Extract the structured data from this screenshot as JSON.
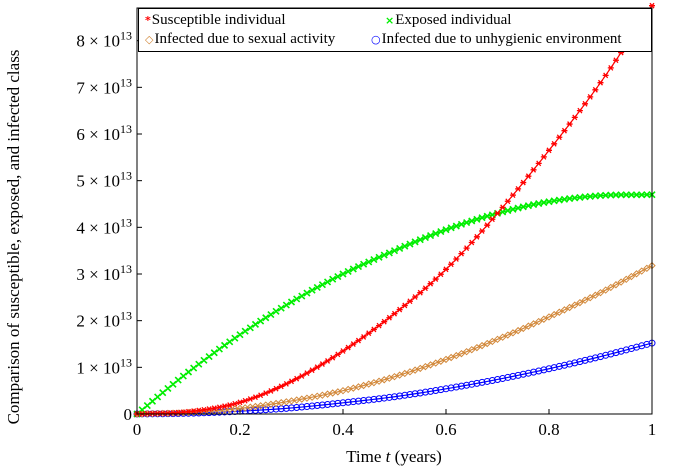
{
  "chart_data": {
    "type": "line",
    "xlabel_prefix": "Time ",
    "xlabel_var": "t",
    "xlabel_suffix": " (years)",
    "ylabel": "Comparison of susceptible, exposed, and infected class",
    "xlim": [
      0,
      1
    ],
    "ylim": [
      0,
      87000000000000
    ],
    "x_ticks": [
      "0",
      "0.2",
      "0.4",
      "0.6",
      "0.8",
      "1"
    ],
    "x_tick_values": [
      0,
      0.2,
      0.4,
      0.6,
      0.8,
      1
    ],
    "y_ticks": [
      {
        "value": 0,
        "mantissa": "0",
        "times": "",
        "base": "",
        "exp": ""
      },
      {
        "value": 10000000000000,
        "mantissa": "1",
        "times": "×",
        "base": "10",
        "exp": "13"
      },
      {
        "value": 20000000000000,
        "mantissa": "2",
        "times": "×",
        "base": "10",
        "exp": "13"
      },
      {
        "value": 30000000000000,
        "mantissa": "3",
        "times": "×",
        "base": "10",
        "exp": "13"
      },
      {
        "value": 40000000000000,
        "mantissa": "4",
        "times": "×",
        "base": "10",
        "exp": "13"
      },
      {
        "value": 50000000000000,
        "mantissa": "5",
        "times": "×",
        "base": "10",
        "exp": "13"
      },
      {
        "value": 60000000000000,
        "mantissa": "6",
        "times": "×",
        "base": "10",
        "exp": "13"
      },
      {
        "value": 70000000000000,
        "mantissa": "7",
        "times": "×",
        "base": "10",
        "exp": "13"
      },
      {
        "value": 80000000000000,
        "mantissa": "8",
        "times": "×",
        "base": "10",
        "exp": "13"
      }
    ],
    "legend_position": "top",
    "grid": false,
    "series": [
      {
        "name": "Susceptible individual",
        "marker": "*",
        "color": "#ff0000",
        "x": [
          0,
          0.1,
          0.2,
          0.3,
          0.4,
          0.5,
          0.6,
          0.7,
          0.8,
          0.9,
          1.0
        ],
        "y": [
          0,
          500000000000,
          2500000000000,
          7000000000000,
          13500000000000,
          21500000000000,
          31000000000000,
          43000000000000,
          56500000000000,
          71000000000000,
          87500000000000
        ]
      },
      {
        "name": "Exposed individual",
        "marker": "×",
        "color": "#00ee00",
        "x": [
          0,
          0.1,
          0.2,
          0.3,
          0.4,
          0.5,
          0.6,
          0.7,
          0.8,
          0.9,
          1.0
        ],
        "y": [
          0,
          9000000000000,
          17000000000000,
          24000000000000,
          30000000000000,
          35000000000000,
          39500000000000,
          43000000000000,
          45500000000000,
          46800000000000,
          47000000000000
        ]
      },
      {
        "name": "Infected due to sexual activity",
        "marker": "◇",
        "color": "#d2883a",
        "x": [
          0,
          0.1,
          0.2,
          0.3,
          0.4,
          0.5,
          0.6,
          0.7,
          0.8,
          0.9,
          1.0
        ],
        "y": [
          0,
          300000000000,
          1200000000000,
          2800000000000,
          5000000000000,
          8000000000000,
          11700000000000,
          16000000000000,
          20800000000000,
          26000000000000,
          31800000000000
        ]
      },
      {
        "name": "Infected due to unhygienic environment",
        "marker": "○",
        "color": "#0000ff",
        "x": [
          0,
          0.1,
          0.2,
          0.3,
          0.4,
          0.5,
          0.6,
          0.7,
          0.8,
          0.9,
          1.0
        ],
        "y": [
          0,
          150000000000,
          600000000000,
          1300000000000,
          2400000000000,
          3700000000000,
          5400000000000,
          7400000000000,
          9700000000000,
          12300000000000,
          15200000000000
        ]
      }
    ]
  }
}
